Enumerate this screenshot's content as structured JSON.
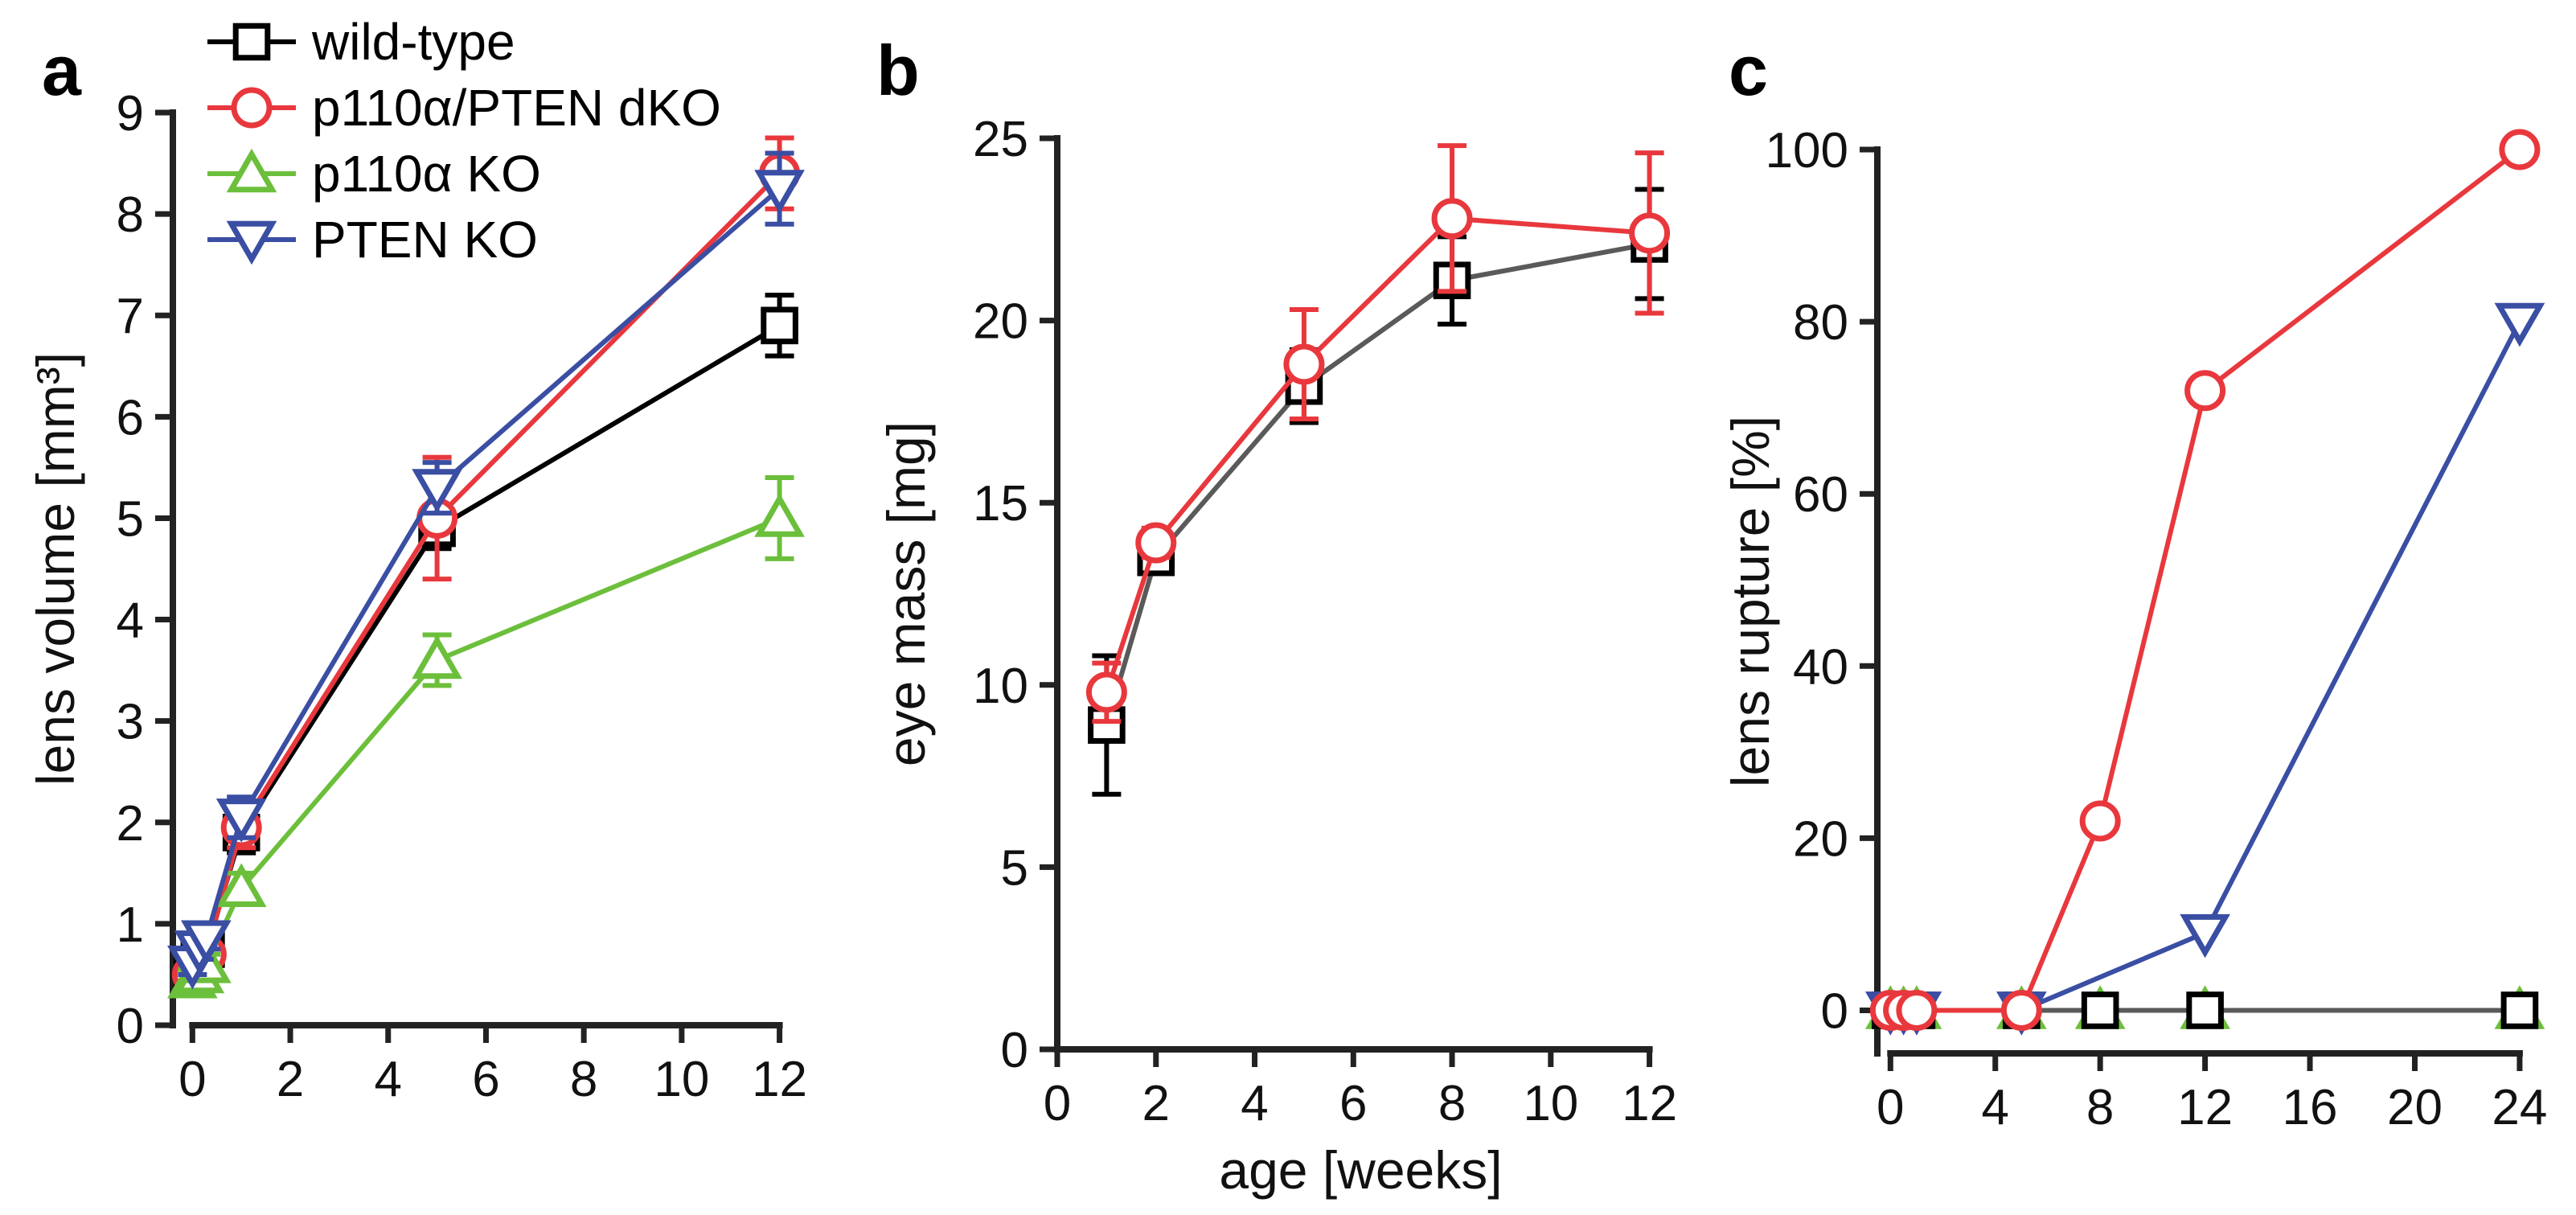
{
  "colors": {
    "wt": "#000000",
    "wt_b": "#5a5a5a",
    "dko": "#e8383d",
    "p110": "#6cbf3b",
    "pten": "#3a4ea3"
  },
  "legend": [
    {
      "label": "wild-type",
      "marker": "square",
      "color_key": "wt"
    },
    {
      "label": "p110α/PTEN dKO",
      "marker": "circle",
      "color_key": "dko"
    },
    {
      "label": "p110α KO",
      "marker": "triangle-up",
      "color_key": "p110"
    },
    {
      "label": "PTEN KO",
      "marker": "triangle-down",
      "color_key": "pten"
    }
  ],
  "chart_data": [
    {
      "panel": "a",
      "type": "line",
      "title": "",
      "xlabel": "",
      "ylabel": "lens volume [mm³]",
      "xlim": [
        -0.4,
        12.5
      ],
      "ylim": [
        0,
        9
      ],
      "xticks": [
        0,
        2,
        4,
        6,
        8,
        10,
        12
      ],
      "yticks": [
        0,
        1,
        2,
        3,
        4,
        5,
        6,
        7,
        8,
        9
      ],
      "series": [
        {
          "name": "wild-type",
          "marker": "square",
          "color_key": "wt",
          "x": [
            0,
            0.14,
            0.28,
            1,
            5,
            12
          ],
          "y": [
            0.5,
            0.65,
            0.75,
            1.9,
            4.9,
            6.9
          ],
          "err": [
            0.1,
            0.1,
            0.1,
            0.2,
            0.2,
            0.3
          ]
        },
        {
          "name": "p110α/PTEN dKO",
          "marker": "circle",
          "color_key": "dko",
          "x": [
            0,
            0.14,
            0.28,
            1,
            5,
            12
          ],
          "y": [
            0.5,
            0.6,
            0.7,
            1.95,
            5.0,
            8.4
          ],
          "err": [
            0.1,
            0.1,
            0.1,
            0.2,
            0.6,
            0.35
          ]
        },
        {
          "name": "p110α KO",
          "marker": "triangle-up",
          "color_key": "p110",
          "x": [
            0,
            0.14,
            0.28,
            1,
            5,
            12
          ],
          "y": [
            0.45,
            0.5,
            0.6,
            1.35,
            3.6,
            5.0
          ],
          "err": [
            0.1,
            0.1,
            0.1,
            0.15,
            0.25,
            0.4
          ]
        },
        {
          "name": "PTEN KO",
          "marker": "triangle-down",
          "color_key": "pten",
          "x": [
            0,
            0.14,
            0.28,
            1,
            5,
            12
          ],
          "y": [
            0.6,
            0.75,
            0.85,
            2.05,
            5.3,
            8.25
          ],
          "err": [
            0.1,
            0.1,
            0.1,
            0.2,
            0.25,
            0.35
          ]
        }
      ]
    },
    {
      "panel": "b",
      "type": "line",
      "title": "",
      "xlabel": "age [weeks]",
      "ylabel": "eye mass [mg]",
      "xlim": [
        0,
        12.3
      ],
      "ylim": [
        0,
        25
      ],
      "xticks": [
        0,
        2,
        4,
        6,
        8,
        10,
        12
      ],
      "yticks": [
        0,
        5,
        10,
        15,
        20,
        25
      ],
      "series": [
        {
          "name": "wild-type",
          "marker": "square",
          "color_key": "wt",
          "line_color_key": "wt_b",
          "x": [
            1,
            2,
            5,
            8,
            12
          ],
          "y": [
            8.9,
            13.5,
            18.2,
            21.1,
            22.1
          ],
          "err": [
            1.9,
            0.4,
            1.0,
            1.2,
            1.5
          ]
        },
        {
          "name": "p110α/PTEN dKO",
          "marker": "circle",
          "color_key": "dko",
          "x": [
            1,
            2,
            5,
            8,
            12
          ],
          "y": [
            9.8,
            13.9,
            18.8,
            22.8,
            22.4
          ],
          "err": [
            0.8,
            0.4,
            1.5,
            2.0,
            2.2
          ]
        }
      ]
    },
    {
      "panel": "c",
      "type": "line",
      "title": "",
      "xlabel": "",
      "ylabel": "lens rupture [%]",
      "xlim": [
        -0.5,
        24.8
      ],
      "ylim": [
        -5,
        100
      ],
      "xticks": [
        0,
        4,
        8,
        12,
        16,
        20,
        24
      ],
      "yticks": [
        0,
        20,
        40,
        60,
        80,
        100
      ],
      "series": [
        {
          "name": "p110α KO",
          "marker": "triangle-up",
          "color_key": "p110",
          "x": [
            0,
            0.5,
            1,
            5,
            8,
            12,
            24
          ],
          "y": [
            0,
            0,
            0,
            0,
            0,
            0,
            0
          ]
        },
        {
          "name": "wild-type",
          "marker": "square",
          "color_key": "wt",
          "line_color_key": "wt_b",
          "x": [
            0,
            0.5,
            1,
            5,
            8,
            12,
            24
          ],
          "y": [
            0,
            0,
            0,
            0,
            0,
            0,
            0
          ]
        },
        {
          "name": "PTEN KO",
          "marker": "triangle-down",
          "color_key": "pten",
          "x": [
            0,
            0.5,
            1,
            5,
            12,
            24
          ],
          "y": [
            0,
            0,
            0,
            0,
            9,
            80
          ]
        },
        {
          "name": "p110α/PTEN dKO",
          "marker": "circle",
          "color_key": "dko",
          "x": [
            0,
            0.5,
            1,
            5,
            8,
            12,
            24
          ],
          "y": [
            0,
            0,
            0,
            0,
            22,
            72,
            100
          ]
        }
      ]
    }
  ]
}
